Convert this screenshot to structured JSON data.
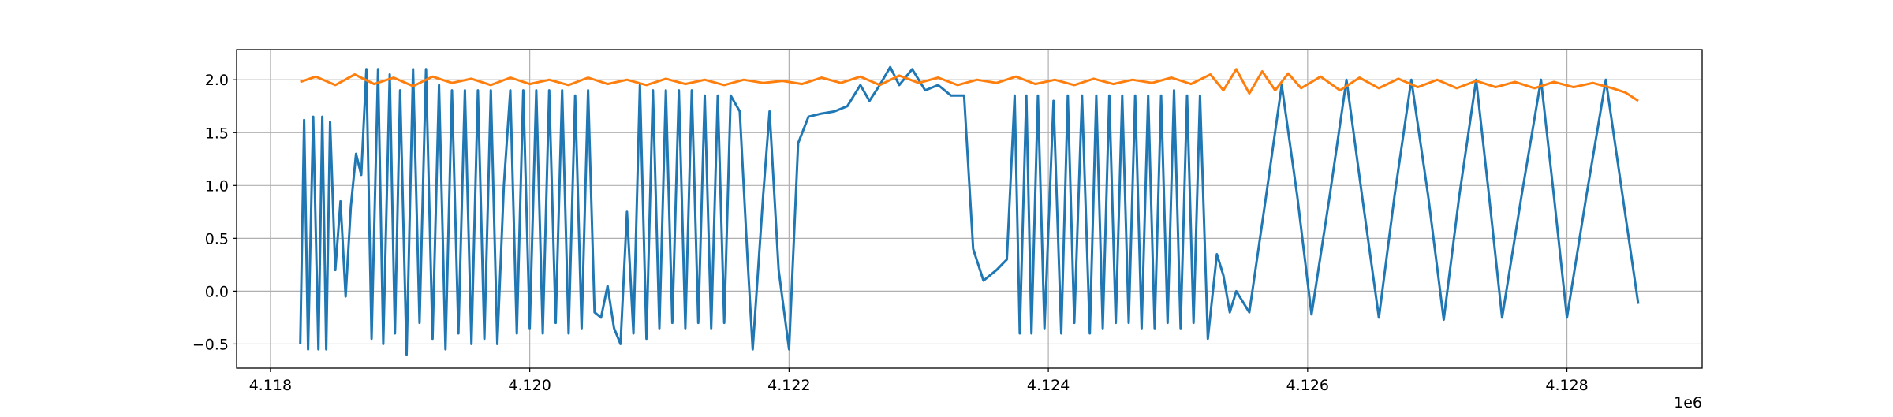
{
  "chart_data": {
    "type": "line",
    "x_offset_label": "1e6",
    "xlim": [
      4117739,
      4129043
    ],
    "ylim": [
      -0.728,
      2.285
    ],
    "xticks": [
      {
        "value": 4118000,
        "label": "4.118"
      },
      {
        "value": 4120000,
        "label": "4.120"
      },
      {
        "value": 4122000,
        "label": "4.122"
      },
      {
        "value": 4124000,
        "label": "4.124"
      },
      {
        "value": 4126000,
        "label": "4.126"
      },
      {
        "value": 4128000,
        "label": "4.128"
      }
    ],
    "yticks": [
      {
        "value": -0.5,
        "label": "−0.5"
      },
      {
        "value": 0,
        "label": "0.0"
      },
      0.5,
      {
        "value": 1,
        "label": "1.0"
      },
      1.5,
      {
        "value": 2,
        "label": "2.0"
      }
    ],
    "grid": true,
    "series": [
      {
        "color": "#1f77b4",
        "x": [
          4118230,
          4118260,
          4118290,
          4118330,
          4118370,
          4118400,
          4118430,
          4118460,
          4118500,
          4118540,
          4118580,
          4118620,
          4118660,
          4118700,
          4118740,
          4118780,
          4118830,
          4118870,
          4118920,
          4118960,
          4119000,
          4119050,
          4119100,
          4119150,
          4119200,
          4119250,
          4119300,
          4119350,
          4119400,
          4119450,
          4119500,
          4119550,
          4119600,
          4119650,
          4119700,
          4119750,
          4119800,
          4119850,
          4119900,
          4119950,
          4120000,
          4120050,
          4120100,
          4120150,
          4120200,
          4120250,
          4120300,
          4120350,
          4120400,
          4120450,
          4120500,
          4120550,
          4120600,
          4120650,
          4120700,
          4120750,
          4120800,
          4120850,
          4120900,
          4120950,
          4121000,
          4121050,
          4121100,
          4121150,
          4121200,
          4121250,
          4121300,
          4121350,
          4121400,
          4121450,
          4121500,
          4121550,
          4121620,
          4121680,
          4121720,
          4121800,
          4121850,
          4121920,
          4122000,
          4122070,
          4122150,
          4122250,
          4122350,
          4122450,
          4122550,
          4122620,
          4122700,
          4122780,
          4122850,
          4122950,
          4123050,
          4123150,
          4123250,
          4123350,
          4123420,
          4123500,
          4123600,
          4123680,
          4123740,
          4123780,
          4123830,
          4123870,
          4123920,
          4123970,
          4124040,
          4124100,
          4124150,
          4124200,
          4124260,
          4124320,
          4124370,
          4124420,
          4124470,
          4124520,
          4124570,
          4124620,
          4124670,
          4124720,
          4124770,
          4124820,
          4124870,
          4124920,
          4124970,
          4125020,
          4125070,
          4125120,
          4125170,
          4125230,
          4125300,
          4125350,
          4125400,
          4125450,
          4125550,
          4125680,
          4125800,
          4125920,
          4126030,
          4126170,
          4126300,
          4126420,
          4126550,
          4126670,
          4126800,
          4126930,
          4127050,
          4127170,
          4127300,
          4127400,
          4127500,
          4127650,
          4127800,
          4127900,
          4128000,
          4128150,
          4128300,
          4128430,
          4128550
        ],
        "values": [
          -0.5,
          1.62,
          -0.55,
          1.65,
          -0.55,
          1.65,
          -0.55,
          1.6,
          0.2,
          0.85,
          -0.05,
          0.8,
          1.3,
          1.1,
          2.1,
          -0.45,
          2.1,
          -0.5,
          2.05,
          -0.4,
          1.9,
          -0.6,
          2.1,
          -0.3,
          2.1,
          -0.45,
          1.95,
          -0.55,
          1.9,
          -0.4,
          1.9,
          -0.5,
          1.9,
          -0.45,
          1.9,
          -0.5,
          1.0,
          1.9,
          -0.4,
          1.9,
          -0.35,
          1.9,
          -0.4,
          1.9,
          -0.3,
          1.9,
          -0.4,
          1.85,
          -0.35,
          1.9,
          -0.2,
          -0.25,
          0.05,
          -0.35,
          -0.5,
          0.75,
          -0.4,
          1.95,
          -0.45,
          1.9,
          -0.35,
          1.9,
          -0.3,
          1.9,
          -0.35,
          1.9,
          -0.3,
          1.85,
          -0.35,
          1.85,
          -0.3,
          1.85,
          1.7,
          0.3,
          -0.55,
          0.9,
          1.7,
          0.2,
          -0.55,
          1.4,
          1.65,
          1.68,
          1.7,
          1.75,
          1.95,
          1.8,
          1.95,
          2.12,
          1.95,
          2.1,
          1.9,
          1.95,
          1.85,
          1.85,
          0.4,
          0.1,
          0.2,
          0.3,
          1.85,
          -0.4,
          1.85,
          -0.4,
          1.85,
          -0.35,
          1.8,
          -0.4,
          1.85,
          -0.3,
          1.85,
          -0.4,
          1.85,
          -0.35,
          1.85,
          -0.3,
          1.85,
          -0.3,
          1.85,
          -0.35,
          1.85,
          -0.35,
          1.85,
          -0.3,
          1.9,
          -0.35,
          1.85,
          -0.3,
          1.85,
          -0.45,
          0.35,
          0.15,
          -0.2,
          0.0,
          -0.2,
          0.9,
          1.95,
          0.9,
          -0.22,
          0.9,
          2.0,
          0.9,
          -0.25,
          0.9,
          2.0,
          0.9,
          -0.27,
          0.9,
          2.0,
          0.9,
          -0.25,
          0.9,
          2.0,
          0.9,
          -0.25,
          0.9,
          2.0,
          0.9,
          -0.12
        ]
      },
      {
        "color": "#ff7f0e",
        "x": [
          4118230,
          4118350,
          4118500,
          4118650,
          4118800,
          4118950,
          4119100,
          4119250,
          4119400,
          4119550,
          4119700,
          4119850,
          4120000,
          4120150,
          4120300,
          4120450,
          4120600,
          4120750,
          4120900,
          4121050,
          4121200,
          4121350,
          4121500,
          4121650,
          4121800,
          4121950,
          4122100,
          4122250,
          4122400,
          4122550,
          4122700,
          4122850,
          4123000,
          4123150,
          4123300,
          4123450,
          4123600,
          4123750,
          4123900,
          4124050,
          4124200,
          4124350,
          4124500,
          4124650,
          4124800,
          4124950,
          4125100,
          4125250,
          4125350,
          4125450,
          4125550,
          4125650,
          4125750,
          4125850,
          4125950,
          4126100,
          4126250,
          4126400,
          4126550,
          4126700,
          4126850,
          4127000,
          4127150,
          4127300,
          4127450,
          4127600,
          4127750,
          4127900,
          4128050,
          4128200,
          4128350,
          4128450,
          4128550
        ],
        "values": [
          1.98,
          2.03,
          1.95,
          2.05,
          1.96,
          2.02,
          1.94,
          2.03,
          1.97,
          2.01,
          1.95,
          2.02,
          1.96,
          2.0,
          1.95,
          2.02,
          1.96,
          2.0,
          1.95,
          2.01,
          1.96,
          2.0,
          1.95,
          2.0,
          1.97,
          1.99,
          1.96,
          2.02,
          1.97,
          2.03,
          1.95,
          2.04,
          1.97,
          2.02,
          1.95,
          2.0,
          1.97,
          2.03,
          1.96,
          2.0,
          1.95,
          2.01,
          1.96,
          2.0,
          1.97,
          2.02,
          1.96,
          2.05,
          1.9,
          2.1,
          1.87,
          2.08,
          1.9,
          2.06,
          1.92,
          2.03,
          1.9,
          2.02,
          1.92,
          2.01,
          1.93,
          2.0,
          1.92,
          1.99,
          1.93,
          1.98,
          1.92,
          1.98,
          1.93,
          1.97,
          1.92,
          1.88,
          1.8
        ]
      }
    ]
  }
}
